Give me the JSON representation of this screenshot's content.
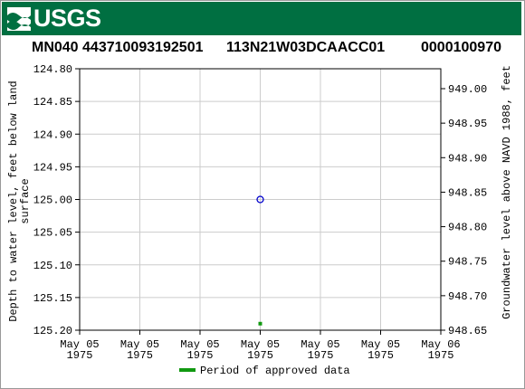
{
  "brand": {
    "name": "USGS",
    "logo_icon": "usgs-wave-icon",
    "banner_color": "#006f41"
  },
  "header": {
    "site_number": "MN040 443710093192501",
    "site_code": "113N21W03DCAACC01",
    "site_id": "0000100970"
  },
  "chart_data": {
    "type": "scatter",
    "title": "",
    "ylabel": "Depth to water level, feet below land surface",
    "ylabel_right": "Groundwater level above NAVD 1988, feet",
    "xlabel": "",
    "ylim": [
      124.8,
      125.2
    ],
    "y_inverted": true,
    "y_ticks": [
      "124.80",
      "124.85",
      "124.90",
      "124.95",
      "125.00",
      "125.05",
      "125.10",
      "125.15",
      "125.20"
    ],
    "ylim_right": [
      948.65,
      949.0
    ],
    "y_right_ticks": [
      "949.00",
      "948.95",
      "948.90",
      "948.85",
      "948.80",
      "948.75",
      "948.70",
      "948.65"
    ],
    "x_ticks": [
      [
        "May 05",
        "1975"
      ],
      [
        "May 05",
        "1975"
      ],
      [
        "May 05",
        "1975"
      ],
      [
        "May 05",
        "1975"
      ],
      [
        "May 05",
        "1975"
      ],
      [
        "May 05",
        "1975"
      ],
      [
        "May 06",
        "1975"
      ]
    ],
    "x_range": [
      0,
      6
    ],
    "points": [
      {
        "x": 3,
        "y": 125.0
      }
    ],
    "approved_periods": [
      {
        "x": 3,
        "y": 125.19
      }
    ],
    "grid": true,
    "point_color": "#0000cc",
    "approved_color": "#119911",
    "legend": {
      "label": "Period of approved data",
      "position": "bottom"
    }
  }
}
